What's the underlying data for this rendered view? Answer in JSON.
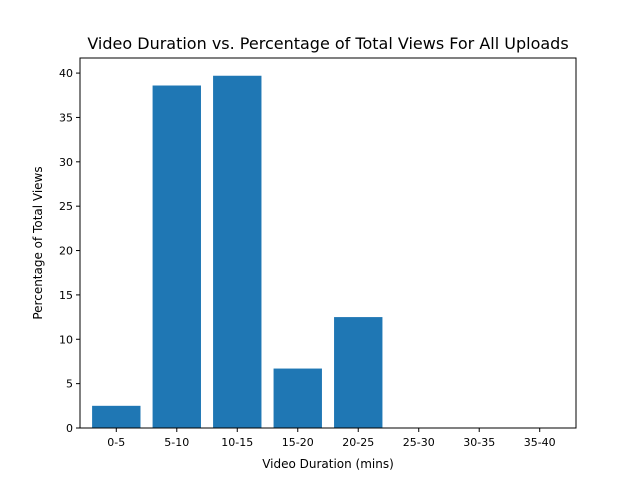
{
  "chart_data": {
    "type": "bar",
    "title": "Video Duration vs. Percentage of Total Views For All Uploads",
    "xlabel": "Video Duration (mins)",
    "ylabel": "Percentage of Total Views",
    "categories": [
      "0-5",
      "5-10",
      "10-15",
      "15-20",
      "20-25",
      "25-30",
      "30-35",
      "35-40"
    ],
    "values": [
      2.5,
      38.6,
      39.7,
      6.7,
      12.5,
      0,
      0,
      0
    ],
    "ylim": [
      0,
      41.7
    ],
    "yticks": [
      0,
      5,
      10,
      15,
      20,
      25,
      30,
      35,
      40
    ],
    "grid": false,
    "bar_color": "#1f77b4"
  }
}
